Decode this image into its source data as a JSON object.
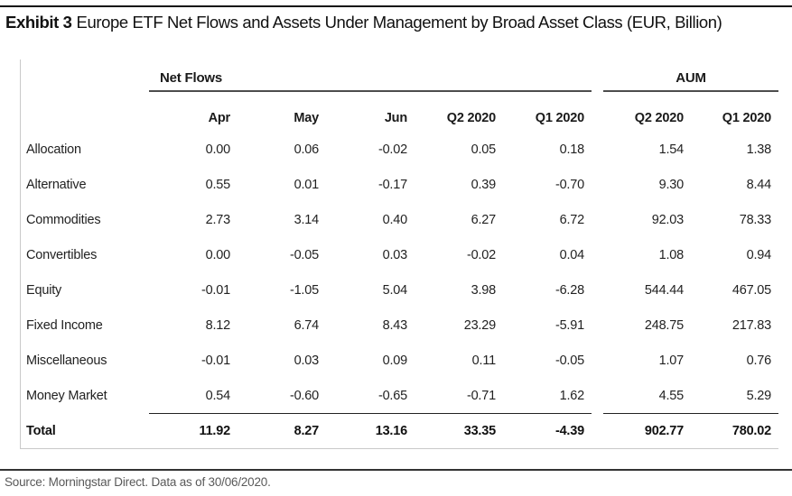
{
  "title": {
    "exhibit": "Exhibit 3",
    "text": "Europe ETF Net Flows and Assets Under Management by Broad Asset Class (EUR, Billion)"
  },
  "table": {
    "groups": [
      {
        "label": "Net Flows"
      },
      {
        "label": "AUM"
      }
    ],
    "columns": [
      "Apr",
      "May",
      "Jun",
      "Q2 2020",
      "Q1 2020",
      "Q2 2020",
      "Q1 2020"
    ],
    "rows": [
      {
        "label": "Allocation",
        "values": [
          "0.00",
          "0.06",
          "-0.02",
          "0.05",
          "0.18",
          "1.54",
          "1.38"
        ]
      },
      {
        "label": "Alternative",
        "values": [
          "0.55",
          "0.01",
          "-0.17",
          "0.39",
          "-0.70",
          "9.30",
          "8.44"
        ]
      },
      {
        "label": "Commodities",
        "values": [
          "2.73",
          "3.14",
          "0.40",
          "6.27",
          "6.72",
          "92.03",
          "78.33"
        ]
      },
      {
        "label": "Convertibles",
        "values": [
          "0.00",
          "-0.05",
          "0.03",
          "-0.02",
          "0.04",
          "1.08",
          "0.94"
        ]
      },
      {
        "label": "Equity",
        "values": [
          "-0.01",
          "-1.05",
          "5.04",
          "3.98",
          "-6.28",
          "544.44",
          "467.05"
        ]
      },
      {
        "label": "Fixed Income",
        "values": [
          "8.12",
          "6.74",
          "8.43",
          "23.29",
          "-5.91",
          "248.75",
          "217.83"
        ]
      },
      {
        "label": "Miscellaneous",
        "values": [
          "-0.01",
          "0.03",
          "0.09",
          "0.11",
          "-0.05",
          "1.07",
          "0.76"
        ]
      },
      {
        "label": "Money Market",
        "values": [
          "0.54",
          "-0.60",
          "-0.65",
          "-0.71",
          "1.62",
          "4.55",
          "5.29"
        ]
      }
    ],
    "total": {
      "label": "Total",
      "values": [
        "11.92",
        "8.27",
        "13.16",
        "33.35",
        "-4.39",
        "902.77",
        "780.02"
      ]
    }
  },
  "footer": {
    "source": "Source: Morningstar Direct. Data as of 30/06/2020."
  },
  "chart_data": {
    "type": "table",
    "exhibit": "Exhibit 3",
    "title": "Europe ETF Net Flows and Assets Under Management by Broad Asset Class (EUR, Billion)",
    "column_groups": [
      {
        "label": "Net Flows",
        "columns": [
          "Apr",
          "May",
          "Jun",
          "Q2 2020",
          "Q1 2020"
        ]
      },
      {
        "label": "AUM",
        "columns": [
          "Q2 2020",
          "Q1 2020"
        ]
      }
    ],
    "rows": [
      {
        "label": "Allocation",
        "net_flows": [
          0.0,
          0.06,
          -0.02,
          0.05,
          0.18
        ],
        "aum": [
          1.54,
          1.38
        ]
      },
      {
        "label": "Alternative",
        "net_flows": [
          0.55,
          0.01,
          -0.17,
          0.39,
          -0.7
        ],
        "aum": [
          9.3,
          8.44
        ]
      },
      {
        "label": "Commodities",
        "net_flows": [
          2.73,
          3.14,
          0.4,
          6.27,
          6.72
        ],
        "aum": [
          92.03,
          78.33
        ]
      },
      {
        "label": "Convertibles",
        "net_flows": [
          0.0,
          -0.05,
          0.03,
          -0.02,
          0.04
        ],
        "aum": [
          1.08,
          0.94
        ]
      },
      {
        "label": "Equity",
        "net_flows": [
          -0.01,
          -1.05,
          5.04,
          3.98,
          -6.28
        ],
        "aum": [
          544.44,
          467.05
        ]
      },
      {
        "label": "Fixed Income",
        "net_flows": [
          8.12,
          6.74,
          8.43,
          23.29,
          -5.91
        ],
        "aum": [
          248.75,
          217.83
        ]
      },
      {
        "label": "Miscellaneous",
        "net_flows": [
          -0.01,
          0.03,
          0.09,
          0.11,
          -0.05
        ],
        "aum": [
          1.07,
          0.76
        ]
      },
      {
        "label": "Money Market",
        "net_flows": [
          0.54,
          -0.6,
          -0.65,
          -0.71,
          1.62
        ],
        "aum": [
          4.55,
          5.29
        ]
      }
    ],
    "total": {
      "label": "Total",
      "net_flows": [
        11.92,
        8.27,
        13.16,
        33.35,
        -4.39
      ],
      "aum": [
        902.77,
        780.02
      ]
    },
    "source": "Source: Morningstar Direct. Data as of 30/06/2020."
  }
}
